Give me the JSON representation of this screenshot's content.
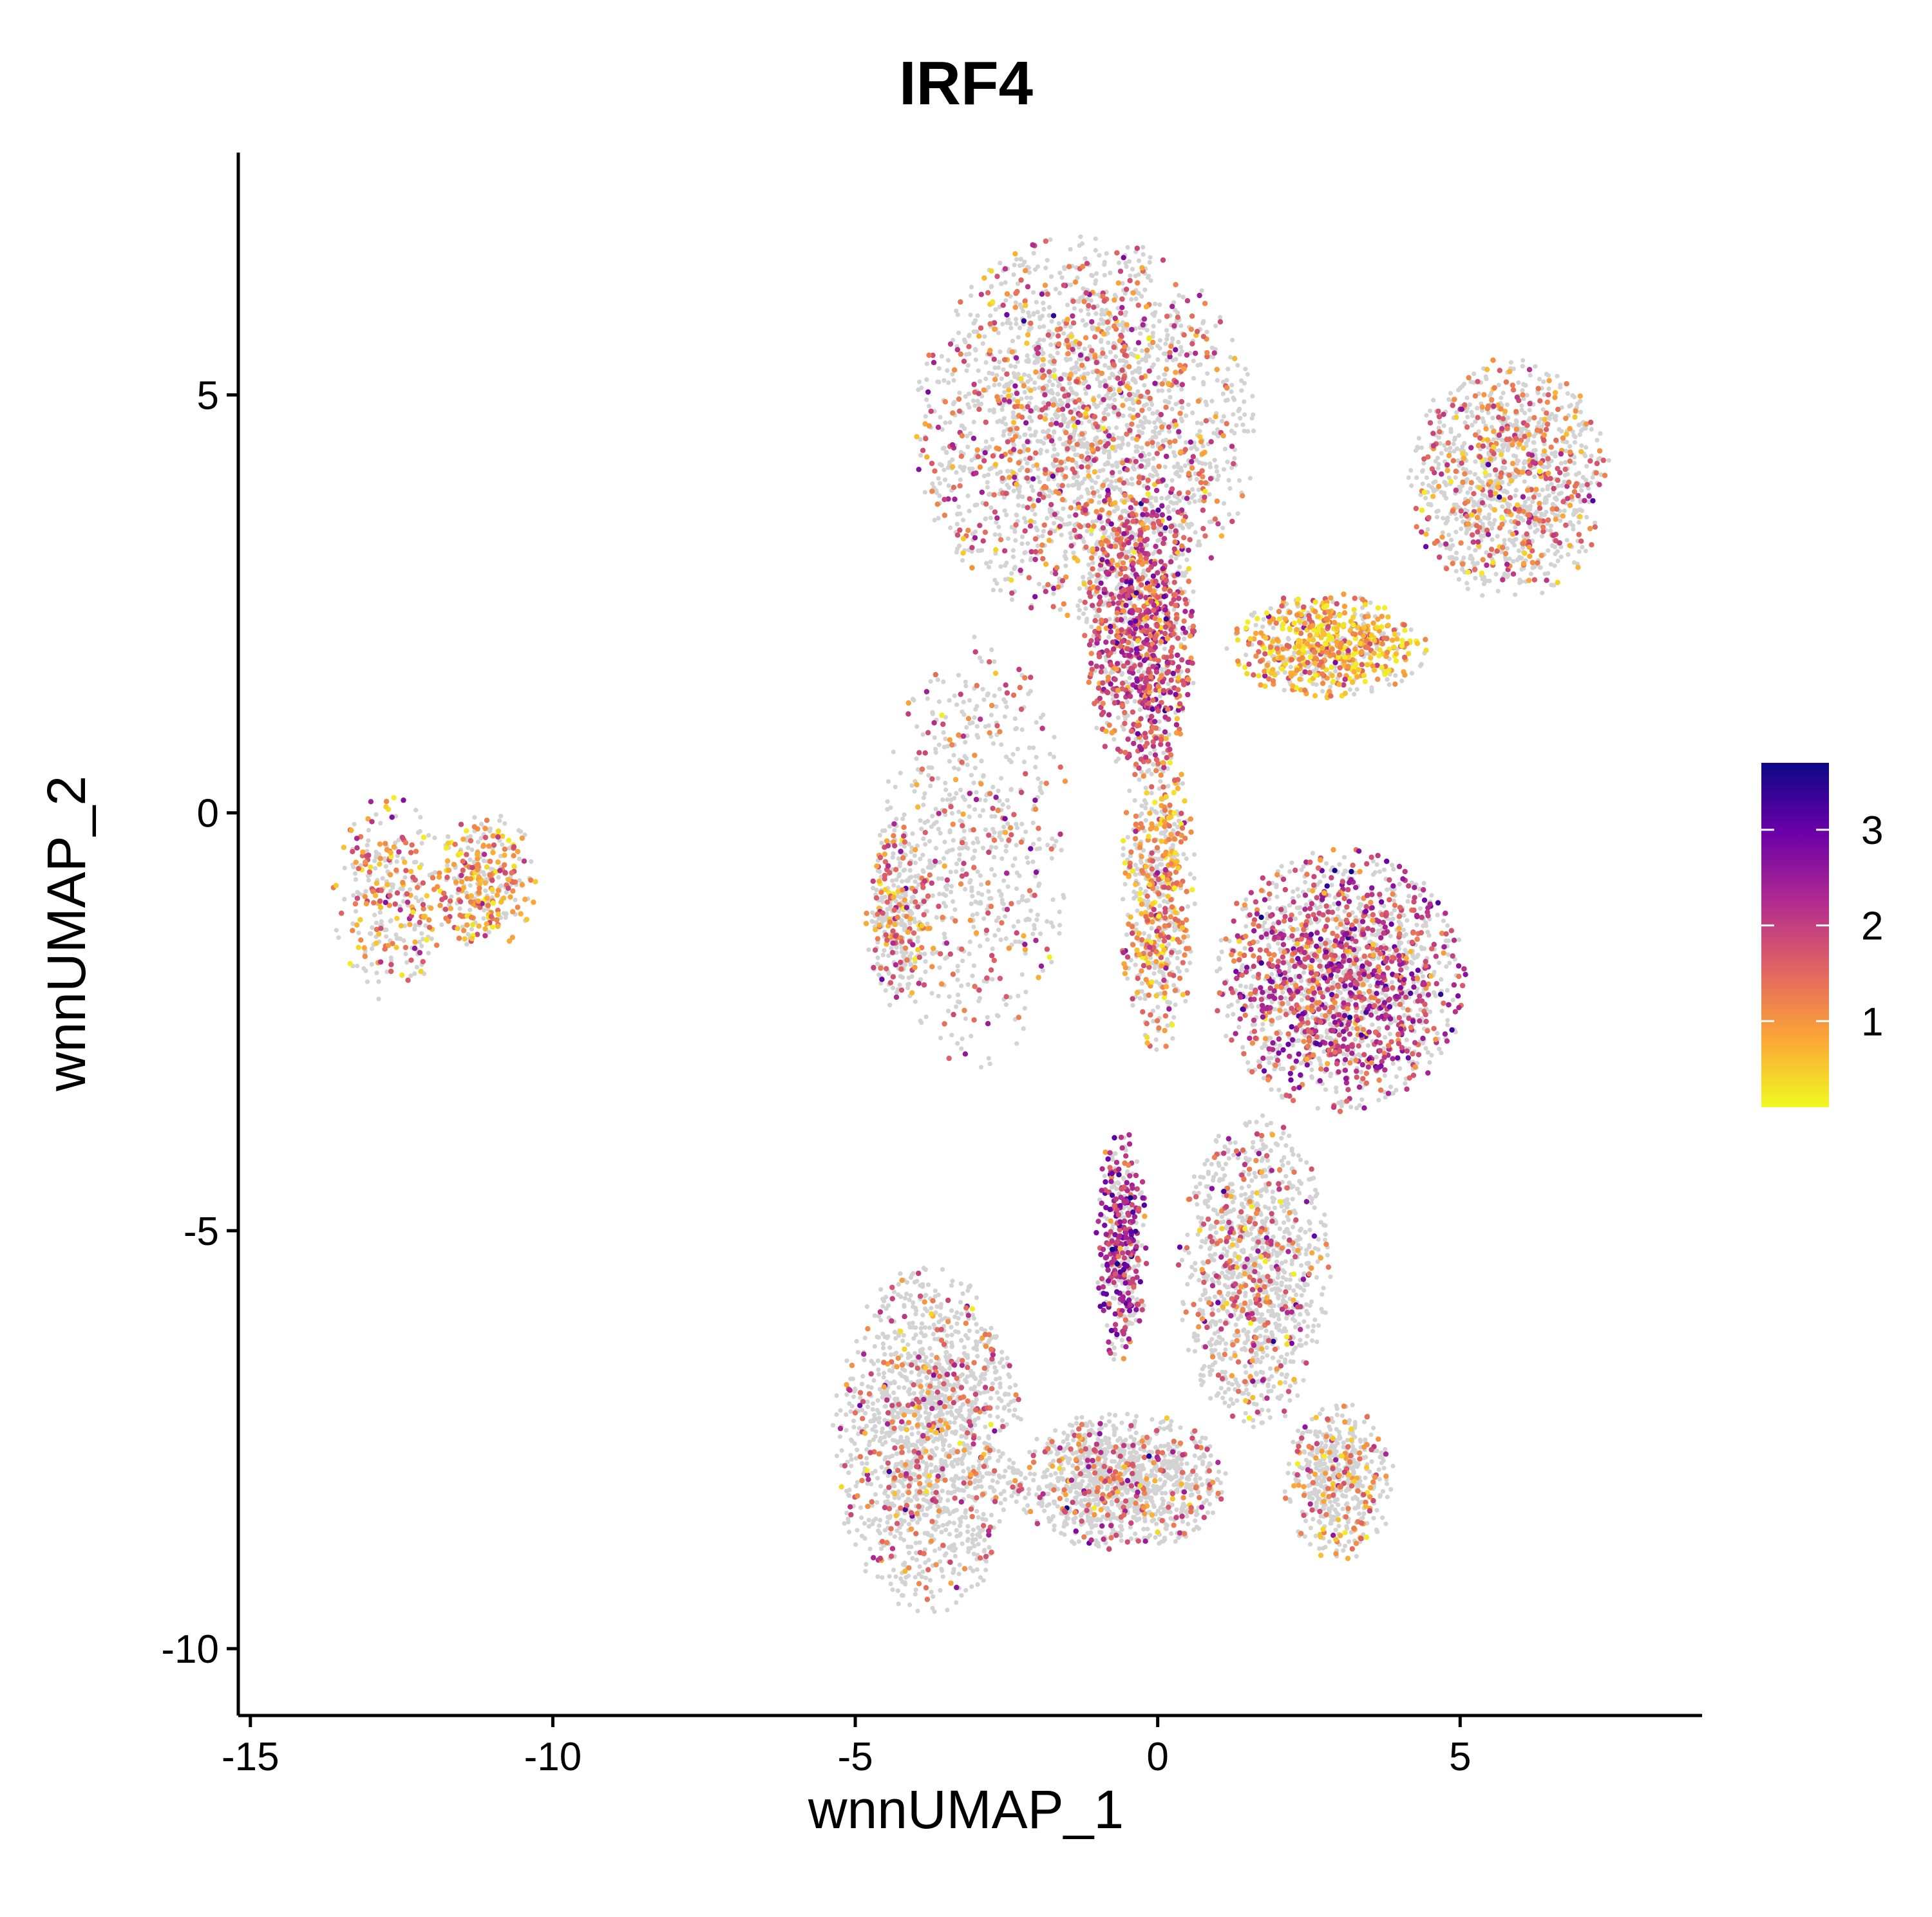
{
  "chart_data": {
    "type": "scatter",
    "title": "IRF4",
    "xlabel": "wnnUMAP_1",
    "ylabel": "wnnUMAP_2",
    "xlim": [
      -15.2,
      9.0
    ],
    "ylim": [
      -10.8,
      7.9
    ],
    "xticks": [
      -15,
      -10,
      -5,
      0,
      5
    ],
    "yticks": [
      -10,
      -5,
      0,
      5
    ],
    "xtick_labels": [
      "-15",
      "-10",
      "-5",
      "0",
      "5"
    ],
    "ytick_labels": [
      "-10",
      "-5",
      "0",
      "5"
    ],
    "grid": false,
    "legend": {
      "placement": "right",
      "type": "colorbar",
      "range": [
        0.1,
        3.7
      ],
      "ticks": [
        1,
        2,
        3
      ],
      "tick_labels": [
        "1",
        "2",
        "3"
      ],
      "colors": [
        "#F0F921",
        "#FCA636",
        "#E16462",
        "#B12A90",
        "#6A00A8",
        "#0D0887"
      ]
    },
    "background_color": "#D3D3D3",
    "clusters": [
      {
        "name": "left-blob-a",
        "cx": -12.7,
        "cy": -1.0,
        "rx": 0.9,
        "ry": 1.2,
        "n_bg": 160,
        "n_expr": 150,
        "mean_expr": 1.2
      },
      {
        "name": "left-blob-b",
        "cx": -11.1,
        "cy": -0.8,
        "rx": 0.8,
        "ry": 0.8,
        "n_bg": 140,
        "n_expr": 180,
        "mean_expr": 1.0
      },
      {
        "name": "top-head",
        "cx": -1.2,
        "cy": 4.6,
        "rx": 2.7,
        "ry": 2.2,
        "n_bg": 1700,
        "n_expr": 700,
        "mean_expr": 1.5
      },
      {
        "name": "top-core",
        "cx": -0.3,
        "cy": 2.1,
        "rx": 0.9,
        "ry": 1.6,
        "n_bg": 300,
        "n_expr": 700,
        "mean_expr": 1.8
      },
      {
        "name": "right-arm",
        "cx": 5.8,
        "cy": 4.0,
        "rx": 1.6,
        "ry": 1.4,
        "n_bg": 800,
        "n_expr": 350,
        "mean_expr": 1.3
      },
      {
        "name": "bridge",
        "cx": 2.8,
        "cy": 2.0,
        "rx": 1.6,
        "ry": 0.6,
        "n_bg": 200,
        "n_expr": 450,
        "mean_expr": 0.8
      },
      {
        "name": "mid-left-ring",
        "cx": -4.3,
        "cy": -1.2,
        "rx": 0.5,
        "ry": 1.1,
        "n_bg": 220,
        "n_expr": 120,
        "mean_expr": 1.3
      },
      {
        "name": "left-torso",
        "cx": -3.0,
        "cy": -0.5,
        "rx": 1.5,
        "ry": 2.5,
        "n_bg": 500,
        "n_expr": 150,
        "mean_expr": 1.6
      },
      {
        "name": "right-mid",
        "cx": 3.0,
        "cy": -2.0,
        "rx": 2.0,
        "ry": 1.5,
        "n_bg": 900,
        "n_expr": 900,
        "mean_expr": 1.9
      },
      {
        "name": "central-stem",
        "cx": 0.0,
        "cy": -1.0,
        "rx": 0.6,
        "ry": 1.8,
        "n_bg": 300,
        "n_expr": 300,
        "mean_expr": 1.1
      },
      {
        "name": "stem-lower",
        "cx": -0.6,
        "cy": -5.2,
        "rx": 0.4,
        "ry": 1.4,
        "n_bg": 150,
        "n_expr": 250,
        "mean_expr": 2.3
      },
      {
        "name": "lower-right-arm",
        "cx": 1.6,
        "cy": -5.5,
        "rx": 1.2,
        "ry": 1.8,
        "n_bg": 900,
        "n_expr": 250,
        "mean_expr": 1.6
      },
      {
        "name": "lower-left-leg",
        "cx": -3.8,
        "cy": -7.5,
        "rx": 1.5,
        "ry": 2.0,
        "n_bg": 1300,
        "n_expr": 280,
        "mean_expr": 1.5
      },
      {
        "name": "lower-foot",
        "cx": -0.6,
        "cy": -8.0,
        "rx": 1.7,
        "ry": 0.8,
        "n_bg": 900,
        "n_expr": 200,
        "mean_expr": 1.5
      },
      {
        "name": "lower-right-blob",
        "cx": 3.0,
        "cy": -8.0,
        "rx": 0.9,
        "ry": 0.9,
        "n_bg": 400,
        "n_expr": 120,
        "mean_expr": 1.2
      }
    ]
  }
}
